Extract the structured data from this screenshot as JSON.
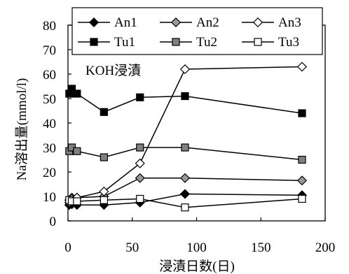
{
  "chart_data": {
    "type": "line",
    "xlabel": "浸漬日数(日)",
    "ylabel": "Na溶出量(mmol/l)",
    "xlim": [
      0,
      200
    ],
    "ylim": [
      0,
      80
    ],
    "xticks": [
      0,
      50,
      100,
      150,
      200
    ],
    "yticks": [
      0,
      10,
      20,
      30,
      40,
      50,
      60,
      70,
      80
    ],
    "grid": false,
    "legend_position": "top",
    "annotation": "KOH浸漬",
    "series": [
      {
        "name": "An1",
        "marker": "diamond",
        "fill": "#000000",
        "x": [
          1,
          3,
          7,
          28,
          56,
          91,
          182
        ],
        "y": [
          6.5,
          6.8,
          6.5,
          6.5,
          7.5,
          11,
          10.5
        ]
      },
      {
        "name": "An2",
        "marker": "diamond",
        "fill": "#999999",
        "x": [
          1,
          3,
          7,
          28,
          56,
          91,
          182
        ],
        "y": [
          7.5,
          9.5,
          9.5,
          10,
          17.5,
          17.5,
          16.5
        ]
      },
      {
        "name": "An3",
        "marker": "diamond",
        "fill": "#ffffff",
        "x": [
          1,
          3,
          7,
          28,
          56,
          91,
          182
        ],
        "y": [
          8.5,
          9,
          9.5,
          12,
          23.5,
          62,
          63
        ]
      },
      {
        "name": "Tu1",
        "marker": "square",
        "fill": "#000000",
        "x": [
          1,
          3,
          7,
          28,
          56,
          91,
          182
        ],
        "y": [
          52,
          54,
          52,
          44.5,
          50.5,
          51,
          44
        ]
      },
      {
        "name": "Tu2",
        "marker": "square",
        "fill": "#808080",
        "x": [
          1,
          3,
          7,
          28,
          56,
          91,
          182
        ],
        "y": [
          28.5,
          30,
          28.5,
          26,
          30,
          30,
          25
        ]
      },
      {
        "name": "Tu3",
        "marker": "square",
        "fill": "#ffffff",
        "x": [
          1,
          3,
          7,
          28,
          56,
          91,
          182
        ],
        "y": [
          8.5,
          8,
          8,
          8.5,
          9,
          5.5,
          9
        ]
      }
    ]
  }
}
